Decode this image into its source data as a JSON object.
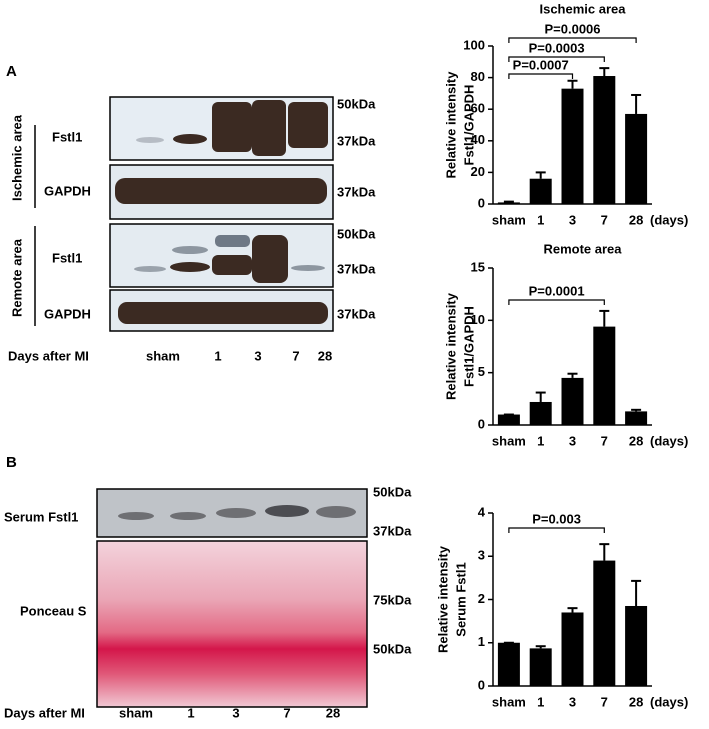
{
  "figure": {
    "panel_labels": [
      "A",
      "B"
    ],
    "blot_a": {
      "groups": [
        "Ischemic area",
        "Remote area"
      ],
      "rows": [
        "Fstl1",
        "GAPDH",
        "Fstl1",
        "GAPDH"
      ],
      "markers": [
        "50kDa",
        "37kDa",
        "37kDa",
        "50kDa",
        "37kDa",
        "37kDa"
      ],
      "x_title": "Days after MI",
      "lanes": [
        "sham",
        "1",
        "3",
        "7",
        "28"
      ]
    },
    "blot_b": {
      "rows": [
        "Serum Fstl1",
        "Ponceau S"
      ],
      "markers": [
        "50kDa",
        "37kDa",
        "75kDa",
        "50kDa"
      ],
      "x_title": "Days after MI",
      "lanes": [
        "sham",
        "1",
        "3",
        "7",
        "28"
      ]
    }
  },
  "chart_data": [
    {
      "type": "bar",
      "title": "Ischemic area",
      "ylabel": [
        "Relative intensity",
        "Fstl1/GAPDH"
      ],
      "categories": [
        "sham",
        "1",
        "3",
        "7",
        "28"
      ],
      "x_unit": "(days)",
      "values": [
        1,
        16,
        73,
        81,
        57
      ],
      "errors": [
        0.5,
        4,
        5,
        5,
        12
      ],
      "color": "#000000",
      "ylim": [
        0,
        100
      ],
      "yticks": [
        0,
        20,
        40,
        60,
        80,
        100
      ],
      "annotations": [
        {
          "text": "P=0.0007",
          "from": 0,
          "to": 2
        },
        {
          "text": "P=0.0003",
          "from": 0,
          "to": 3
        },
        {
          "text": "P=0.0006",
          "from": 0,
          "to": 4
        }
      ]
    },
    {
      "type": "bar",
      "title": "Remote area",
      "ylabel": [
        "Relative intensity",
        "Fstl1/GAPDH"
      ],
      "categories": [
        "sham",
        "1",
        "3",
        "7",
        "28"
      ],
      "x_unit": "(days)",
      "values": [
        1,
        2.2,
        4.5,
        9.4,
        1.3
      ],
      "errors": [
        0,
        0.9,
        0.4,
        1.5,
        0.15
      ],
      "color": "#000000",
      "ylim": [
        0,
        15
      ],
      "yticks": [
        0,
        5,
        10,
        15
      ],
      "annotations": [
        {
          "text": "P=0.0001",
          "from": 0,
          "to": 3
        }
      ]
    },
    {
      "type": "bar",
      "ylabel": [
        "Relative intensity",
        "Serum Fstl1"
      ],
      "categories": [
        "sham",
        "1",
        "3",
        "7",
        "28"
      ],
      "x_unit": "(days)",
      "values": [
        1,
        0.87,
        1.7,
        2.9,
        1.85
      ],
      "errors": [
        0,
        0.05,
        0.1,
        0.38,
        0.58
      ],
      "color": "#000000",
      "ylim": [
        0,
        4
      ],
      "yticks": [
        0,
        1,
        2,
        3,
        4
      ],
      "annotations": [
        {
          "text": "P=0.003",
          "from": 0,
          "to": 3
        }
      ]
    }
  ]
}
